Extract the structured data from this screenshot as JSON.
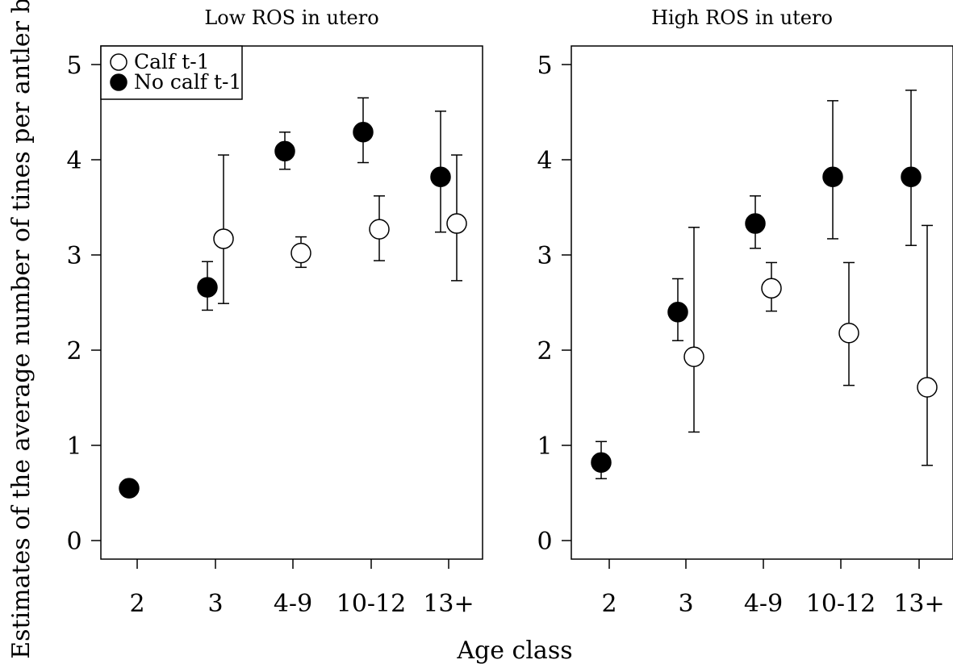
{
  "chart_data": [
    {
      "type": "scatter",
      "title": "Low ROS in utero",
      "categories": [
        "2",
        "3",
        "4-9",
        "10-12",
        "13+"
      ],
      "ylim": [
        0,
        5
      ],
      "yticks": [
        "0",
        "1",
        "2",
        "3",
        "4",
        "5"
      ],
      "legend": {
        "placement": "top-left",
        "entries": [
          {
            "label": "Calf t-1",
            "marker": "open-circle"
          },
          {
            "label": "No calf t-1",
            "marker": "filled-circle"
          }
        ]
      },
      "series": [
        {
          "name": "Calf t-1",
          "marker": "open-circle",
          "points": [
            {
              "category": "3",
              "y": 3.17,
              "lower": 2.49,
              "upper": 4.05
            },
            {
              "category": "4-9",
              "y": 3.02,
              "lower": 2.87,
              "upper": 3.19
            },
            {
              "category": "10-12",
              "y": 3.27,
              "lower": 2.94,
              "upper": 3.62
            },
            {
              "category": "13+",
              "y": 3.33,
              "lower": 2.73,
              "upper": 4.05
            }
          ]
        },
        {
          "name": "No calf t-1",
          "marker": "filled-circle",
          "points": [
            {
              "category": "2",
              "y": 0.55,
              "lower": 0.55,
              "upper": 0.55
            },
            {
              "category": "3",
              "y": 2.66,
              "lower": 2.42,
              "upper": 2.93
            },
            {
              "category": "4-9",
              "y": 4.09,
              "lower": 3.9,
              "upper": 4.29
            },
            {
              "category": "10-12",
              "y": 4.29,
              "lower": 3.97,
              "upper": 4.65
            },
            {
              "category": "13+",
              "y": 3.82,
              "lower": 3.24,
              "upper": 4.51
            }
          ]
        }
      ]
    },
    {
      "type": "scatter",
      "title": "High ROS in utero",
      "categories": [
        "2",
        "3",
        "4-9",
        "10-12",
        "13+"
      ],
      "ylim": [
        0,
        5
      ],
      "yticks": [
        "0",
        "1",
        "2",
        "3",
        "4",
        "5"
      ],
      "series": [
        {
          "name": "Calf t-1",
          "marker": "open-circle",
          "points": [
            {
              "category": "3",
              "y": 1.93,
              "lower": 1.14,
              "upper": 3.29
            },
            {
              "category": "4-9",
              "y": 2.65,
              "lower": 2.41,
              "upper": 2.92
            },
            {
              "category": "10-12",
              "y": 2.18,
              "lower": 1.63,
              "upper": 2.92
            },
            {
              "category": "13+",
              "y": 1.61,
              "lower": 0.79,
              "upper": 3.31
            }
          ]
        },
        {
          "name": "No calf t-1",
          "marker": "filled-circle",
          "points": [
            {
              "category": "2",
              "y": 0.82,
              "lower": 0.65,
              "upper": 1.04
            },
            {
              "category": "3",
              "y": 2.4,
              "lower": 2.1,
              "upper": 2.75
            },
            {
              "category": "4-9",
              "y": 3.33,
              "lower": 3.07,
              "upper": 3.62
            },
            {
              "category": "10-12",
              "y": 3.82,
              "lower": 3.17,
              "upper": 4.62
            },
            {
              "category": "13+",
              "y": 3.82,
              "lower": 3.1,
              "upper": 4.73
            }
          ]
        }
      ]
    }
  ],
  "shared_axes": {
    "xlabel": "Age class",
    "ylabel": "Estimates of the average number of tines per antler beam"
  }
}
